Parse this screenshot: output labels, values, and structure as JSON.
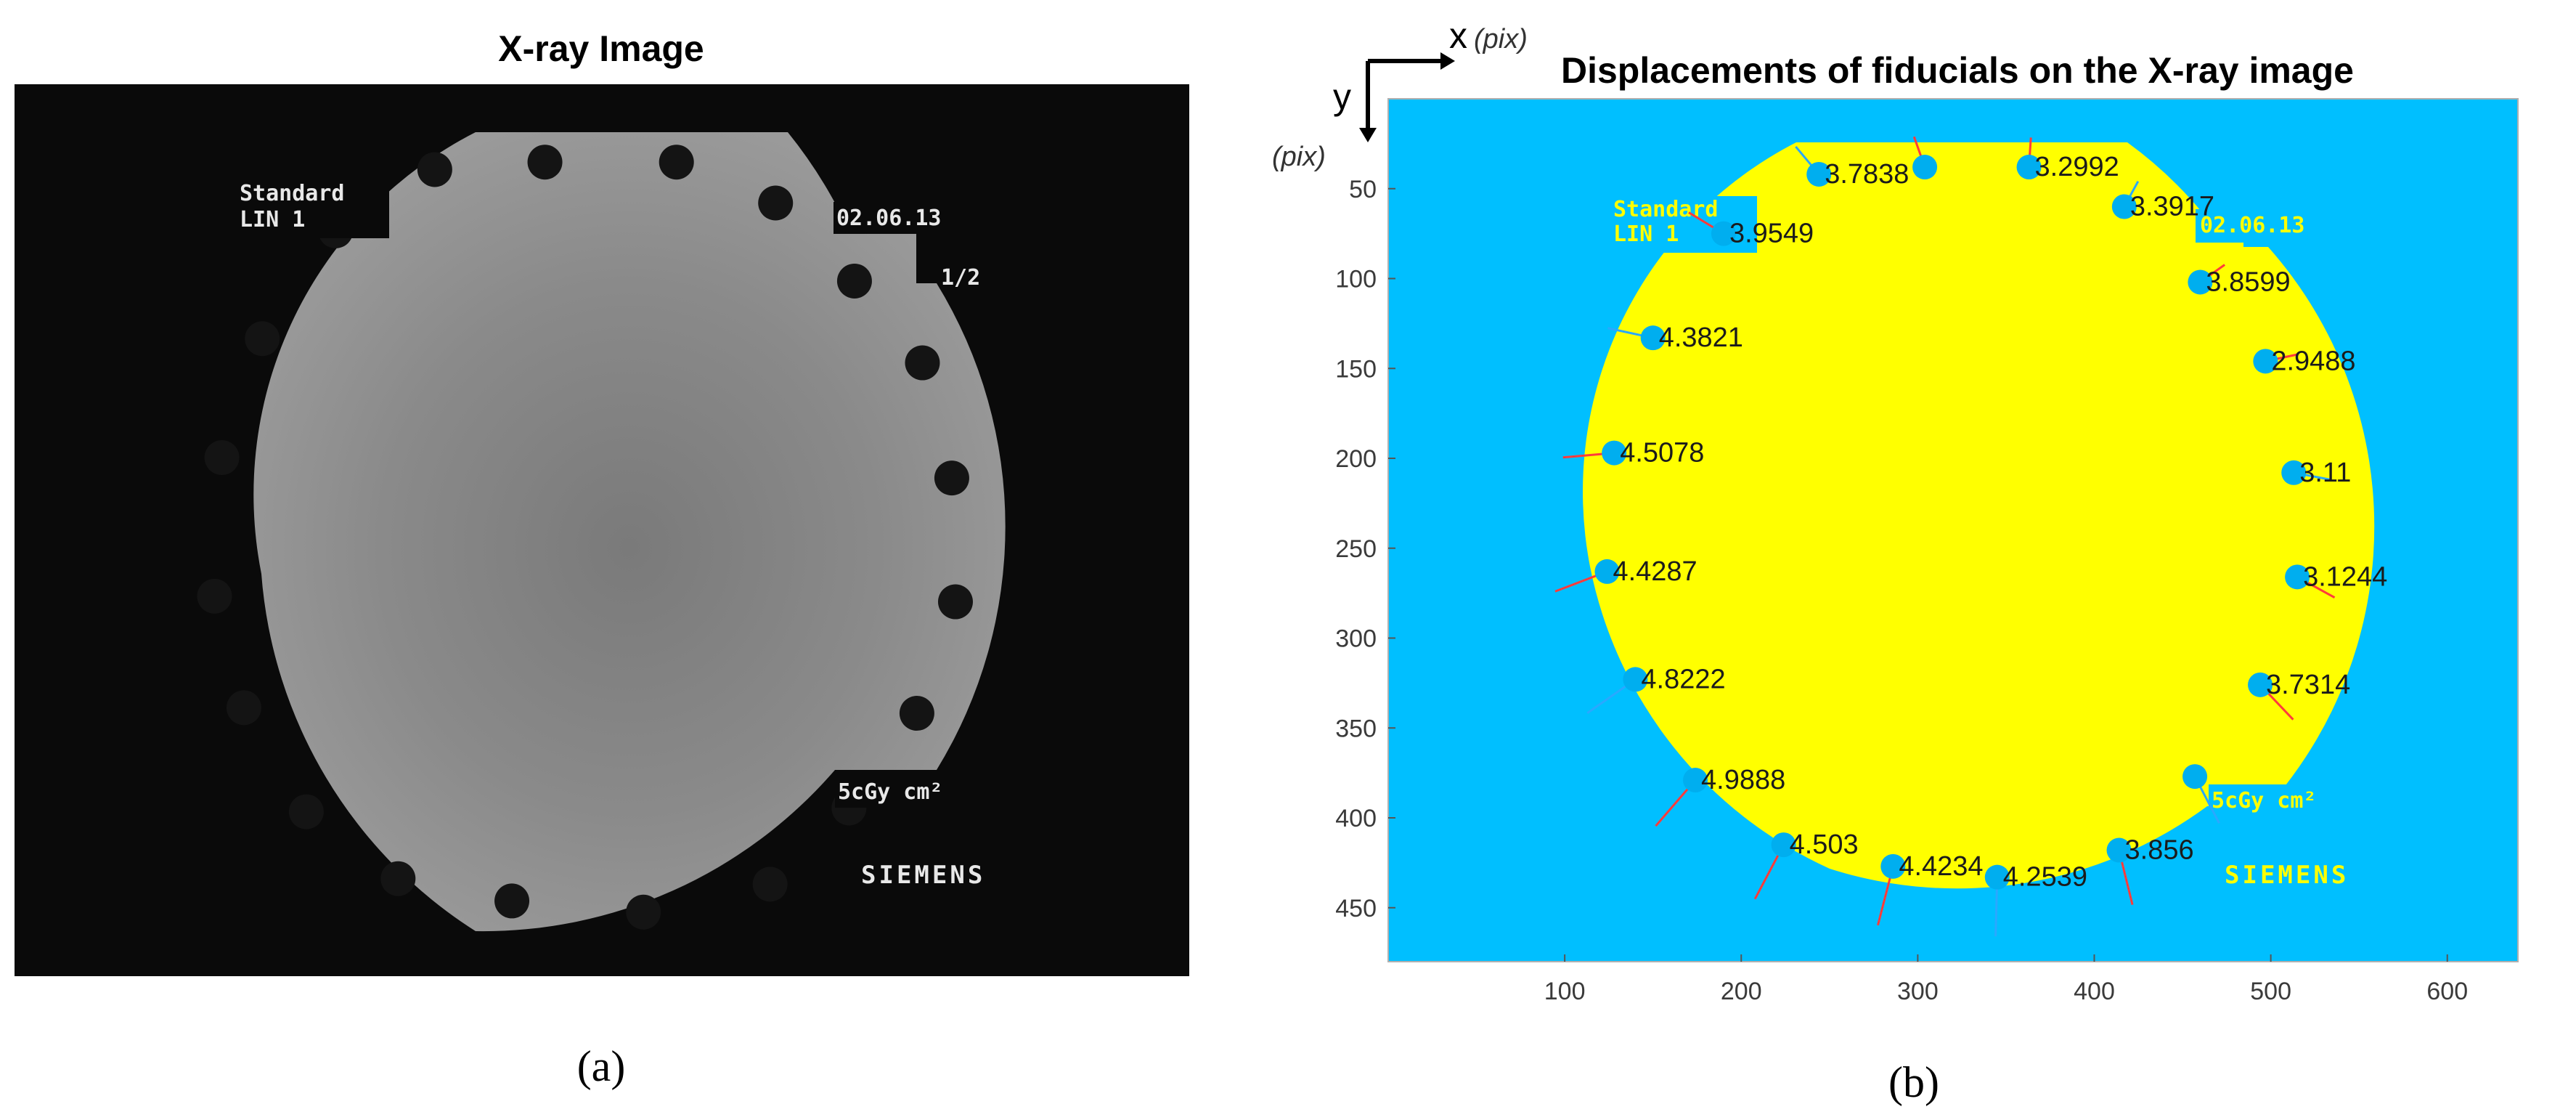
{
  "panel_a": {
    "title": "X-ray Image",
    "caption": "(a)",
    "overlay_text": {
      "top_left_line1": "Standard",
      "top_left_line2": "LIN 1",
      "top_right": "02.06.13",
      "right_mid": "1/2",
      "bottom_right": "5cGy cm²",
      "brand": "SIEMENS"
    }
  },
  "panel_b": {
    "title": "Displacements of fiducials on the X-ray image",
    "caption": "(b)",
    "x_axis_word": "x",
    "x_axis_unit": "(pix)",
    "y_axis_word": "y",
    "y_axis_unit": "(pix)",
    "overlay_text": {
      "top_left_line1": "Standard",
      "top_left_line2": "LIN 1",
      "top_right": "02.06.13",
      "bottom_right": "5cGy cm²",
      "brand": "SIEMENS"
    },
    "colors": {
      "background": "#00bfff",
      "field": "#ffff00",
      "marker": "#00aeef",
      "arrow": "#ff3b3b"
    }
  },
  "chart_data": {
    "type": "scatter",
    "title": "Displacements of fiducials on the X-ray image",
    "xlabel": "x (pix)",
    "ylabel": "y (pix)",
    "xlim": [
      0,
      640
    ],
    "ylim": [
      480,
      0
    ],
    "x_ticks": [
      100,
      200,
      300,
      400,
      500,
      600
    ],
    "y_ticks": [
      50,
      100,
      150,
      200,
      250,
      300,
      350,
      400,
      450
    ],
    "grid": false,
    "points": [
      {
        "x": 244,
        "y": 42,
        "label": "3.7838"
      },
      {
        "x": 304,
        "y": 38,
        "label": ""
      },
      {
        "x": 363,
        "y": 38,
        "label": "3.2992"
      },
      {
        "x": 417,
        "y": 60,
        "label": "3.3917"
      },
      {
        "x": 190,
        "y": 75,
        "label": "3.9549"
      },
      {
        "x": 460,
        "y": 102,
        "label": "3.8599"
      },
      {
        "x": 150,
        "y": 133,
        "label": "4.3821"
      },
      {
        "x": 497,
        "y": 146,
        "label": "2.9488"
      },
      {
        "x": 128,
        "y": 197,
        "label": "4.5078"
      },
      {
        "x": 513,
        "y": 208,
        "label": "3.11"
      },
      {
        "x": 124,
        "y": 263,
        "label": "4.4287"
      },
      {
        "x": 515,
        "y": 266,
        "label": "3.1244"
      },
      {
        "x": 140,
        "y": 323,
        "label": "4.8222"
      },
      {
        "x": 494,
        "y": 326,
        "label": "3.7314"
      },
      {
        "x": 174,
        "y": 379,
        "label": "4.9888"
      },
      {
        "x": 457,
        "y": 377,
        "label": ""
      },
      {
        "x": 224,
        "y": 415,
        "label": "4.503"
      },
      {
        "x": 286,
        "y": 427,
        "label": "4.4234"
      },
      {
        "x": 345,
        "y": 433,
        "label": "4.2539"
      },
      {
        "x": 414,
        "y": 418,
        "label": "3.856"
      }
    ]
  }
}
